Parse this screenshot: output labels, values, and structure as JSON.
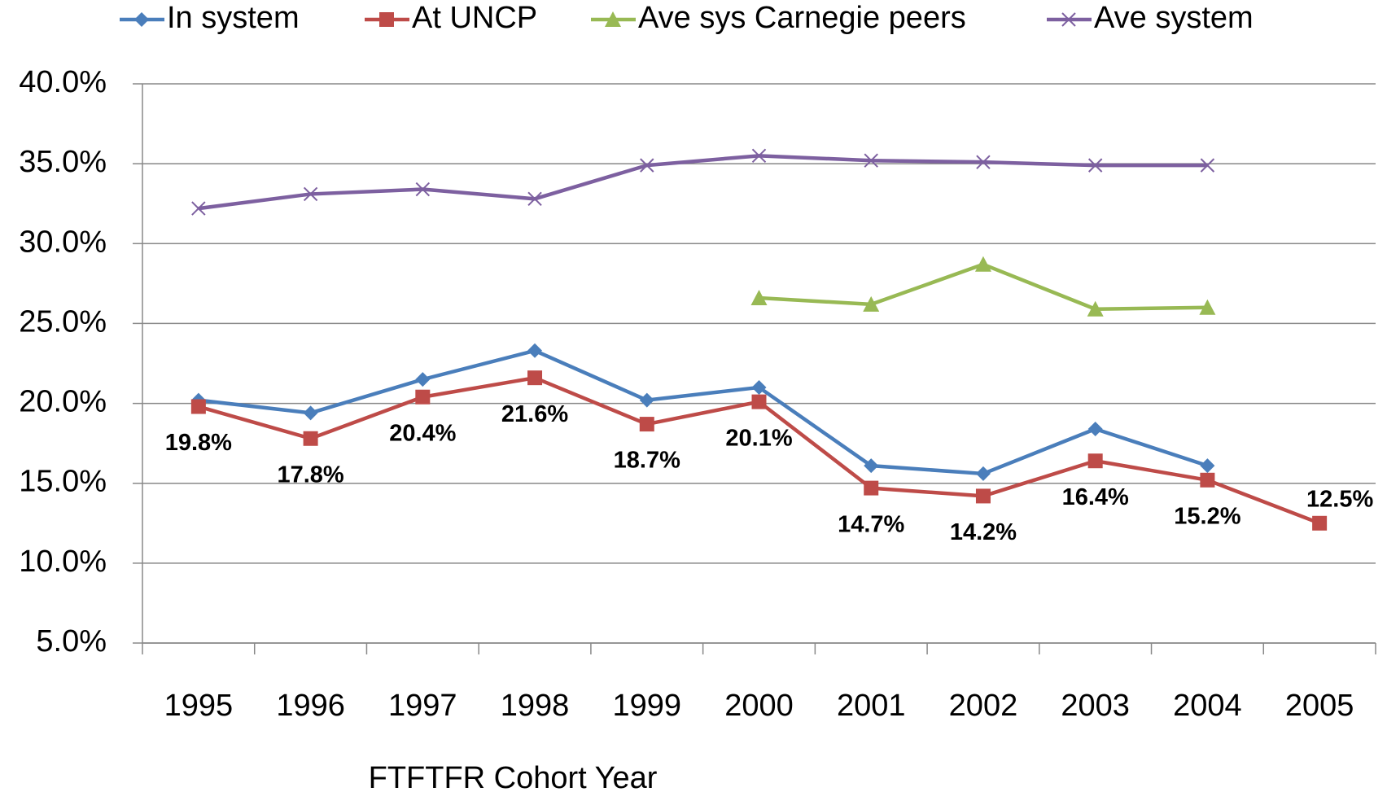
{
  "chart_data": {
    "type": "line",
    "x_label": "FTFTFR Cohort Year",
    "categories": [
      "1995",
      "1996",
      "1997",
      "1998",
      "1999",
      "2000",
      "2001",
      "2002",
      "2003",
      "2004",
      "2005"
    ],
    "series": [
      {
        "name": "In system",
        "color": "#4a7ebb",
        "marker": "diamond",
        "values": [
          20.2,
          19.4,
          21.5,
          23.3,
          20.2,
          21.0,
          16.1,
          15.6,
          18.4,
          16.1,
          null
        ]
      },
      {
        "name": "At UNCP",
        "color": "#be4b48",
        "marker": "square",
        "values": [
          19.8,
          17.8,
          20.4,
          21.6,
          18.7,
          20.1,
          14.7,
          14.2,
          16.4,
          15.2,
          12.5
        ],
        "value_labels": [
          "19.8%",
          "17.8%",
          "20.4%",
          "21.6%",
          "18.7%",
          "20.1%",
          "14.7%",
          "14.2%",
          "16.4%",
          "15.2%",
          "12.5%"
        ]
      },
      {
        "name": "Ave sys Carnegie peers",
        "color": "#98b954",
        "marker": "triangle",
        "values": [
          null,
          null,
          null,
          null,
          null,
          26.6,
          26.2,
          28.7,
          25.9,
          26.0,
          null
        ]
      },
      {
        "name": "Ave system",
        "color": "#7d60a0",
        "marker": "x",
        "values": [
          32.2,
          33.1,
          33.4,
          32.8,
          34.9,
          35.5,
          35.2,
          35.1,
          34.9,
          34.9,
          null
        ]
      }
    ],
    "ylim": [
      5,
      40
    ],
    "yticks": [
      {
        "value": 5,
        "label": "5.0%"
      },
      {
        "value": 10,
        "label": "10.0%"
      },
      {
        "value": 15,
        "label": "15.0%"
      },
      {
        "value": 20,
        "label": "20.0%"
      },
      {
        "value": 25,
        "label": "25.0%"
      },
      {
        "value": 30,
        "label": "30.0%"
      },
      {
        "value": 35,
        "label": "35.0%"
      },
      {
        "value": 40,
        "label": "40.0%"
      }
    ],
    "grid": true,
    "legend": "top"
  }
}
